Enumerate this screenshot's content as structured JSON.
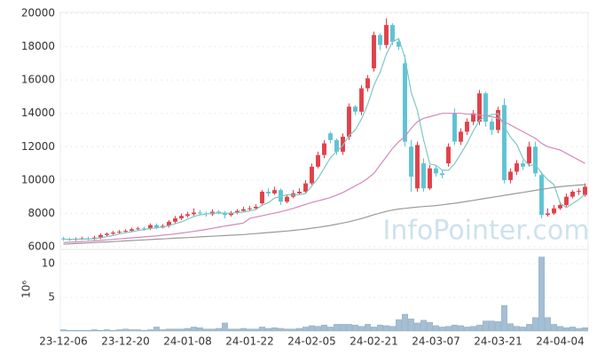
{
  "chart_data": [
    {
      "type": "candlestick",
      "categories": [
        "23-12-06",
        null,
        null,
        null,
        null,
        null,
        null,
        null,
        null,
        null,
        "23-12-20",
        null,
        null,
        null,
        null,
        null,
        null,
        null,
        null,
        null,
        "24-01-08",
        null,
        null,
        null,
        null,
        null,
        null,
        null,
        null,
        null,
        "24-01-22",
        null,
        null,
        null,
        null,
        null,
        null,
        null,
        null,
        null,
        "24-02-05",
        null,
        null,
        null,
        null,
        null,
        null,
        null,
        null,
        null,
        "24-02-21",
        null,
        null,
        null,
        null,
        null,
        null,
        null,
        null,
        null,
        "24-03-07",
        null,
        null,
        null,
        null,
        null,
        null,
        null,
        null,
        null,
        "24-03-21",
        null,
        null,
        null,
        null,
        null,
        null,
        null,
        null,
        null,
        "24-04-04",
        null,
        null,
        null,
        null
      ],
      "open": [
        6500,
        6450,
        6420,
        6480,
        6500,
        6460,
        6550,
        6700,
        6780,
        6850,
        6900,
        6950,
        7050,
        7100,
        7080,
        7300,
        7150,
        7250,
        7500,
        7700,
        7850,
        7950,
        8050,
        8000,
        7950,
        8100,
        8050,
        7900,
        8050,
        8150,
        8250,
        8300,
        8600,
        9300,
        9200,
        9400,
        8700,
        9000,
        9200,
        9300,
        9800,
        10800,
        11500,
        12800,
        12400,
        11700,
        12600,
        14400,
        14100,
        15500,
        16700,
        18700,
        18100,
        19300,
        18300,
        17000,
        12000,
        9500,
        11000,
        9500,
        10700,
        10400,
        11000,
        14000,
        12300,
        12900,
        13500,
        13500,
        15200,
        13500,
        13000,
        14500,
        10000,
        10500,
        11000,
        11000,
        12000,
        10300,
        7900,
        8000,
        8300,
        8500,
        9000,
        9300,
        9100
      ],
      "high": [
        6600,
        6550,
        6550,
        6600,
        6600,
        6650,
        6800,
        6850,
        6950,
        7000,
        7050,
        7150,
        7200,
        7200,
        7400,
        7400,
        7350,
        7600,
        7850,
        8000,
        8100,
        8300,
        8200,
        8100,
        8250,
        8200,
        8150,
        8150,
        8250,
        8400,
        8450,
        8550,
        9400,
        9500,
        9600,
        9500,
        9150,
        9400,
        9500,
        10000,
        11000,
        11700,
        12400,
        12900,
        12500,
        12800,
        14600,
        14500,
        15700,
        16300,
        18900,
        18800,
        19700,
        19400,
        18500,
        17500,
        12400,
        12300,
        11300,
        10900,
        10900,
        10600,
        12200,
        14300,
        13100,
        13700,
        14200,
        15400,
        15300,
        13700,
        14400,
        14900,
        10700,
        11200,
        11200,
        12300,
        12300,
        10500,
        8300,
        8500,
        8700,
        9200,
        9400,
        9500,
        9800
      ],
      "low": [
        6350,
        6350,
        6350,
        6400,
        6380,
        6400,
        6450,
        6600,
        6700,
        6780,
        6850,
        6900,
        6980,
        6950,
        7000,
        7050,
        7100,
        7150,
        7400,
        7600,
        7750,
        7850,
        7900,
        7800,
        7850,
        7950,
        7700,
        7800,
        7950,
        8050,
        8150,
        8200,
        8500,
        9000,
        9100,
        8500,
        8600,
        8900,
        9100,
        9200,
        9700,
        10700,
        11300,
        12200,
        11500,
        11500,
        12400,
        13900,
        13900,
        15300,
        16500,
        17800,
        17900,
        18100,
        17800,
        12000,
        9300,
        9300,
        9300,
        9400,
        10200,
        10100,
        10800,
        12100,
        12100,
        12700,
        13300,
        13300,
        13200,
        12700,
        12800,
        9800,
        9800,
        10300,
        10600,
        10800,
        10200,
        7700,
        7800,
        7900,
        8200,
        8400,
        8900,
        9100,
        9000
      ],
      "close": [
        6450,
        6420,
        6480,
        6500,
        6460,
        6550,
        6700,
        6780,
        6850,
        6900,
        6950,
        7050,
        7100,
        7080,
        7300,
        7150,
        7250,
        7500,
        7700,
        7850,
        7950,
        8050,
        8000,
        7950,
        8100,
        8050,
        7900,
        8050,
        8150,
        8250,
        8300,
        8400,
        9300,
        9200,
        9400,
        8700,
        9000,
        9200,
        9300,
        9800,
        10800,
        11500,
        12200,
        12400,
        11700,
        12600,
        14400,
        14100,
        15500,
        16100,
        18700,
        18100,
        19300,
        18300,
        18000,
        12300,
        10200,
        12100,
        9500,
        10700,
        10400,
        10300,
        12000,
        12300,
        12900,
        13500,
        14000,
        15200,
        13500,
        13000,
        14200,
        10000,
        10500,
        11000,
        10800,
        12000,
        10400,
        7900,
        8000,
        8300,
        8500,
        9000,
        9300,
        9350,
        9600
      ],
      "up_color": "#e2404a",
      "down_color": "#5ec3d3",
      "lines": [
        {
          "color": "#7cc8c4",
          "values": [
            6450,
            6440,
            6450,
            6460,
            6460,
            6480,
            6540,
            6600,
            6670,
            6760,
            6840,
            6900,
            6970,
            7020,
            7100,
            7140,
            7180,
            7260,
            7380,
            7490,
            7650,
            7810,
            7910,
            7960,
            8010,
            8030,
            8000,
            8010,
            8050,
            8080,
            8150,
            8230,
            8490,
            8640,
            8920,
            9000,
            9120,
            9100,
            9120,
            9200,
            9640,
            10100,
            10720,
            11340,
            11720,
            12080,
            12660,
            13000,
            13660,
            14540,
            15680,
            16460,
            17540,
            18300,
            18480,
            17340,
            15260,
            14180,
            12420,
            10960,
            10880,
            10600,
            10580,
            10980,
            11580,
            12200,
            12940,
            13580,
            13820,
            13920,
            13980,
            13180,
            12580,
            12140,
            11300,
            10860,
            10940,
            10420,
            10020,
            9720,
            8620,
            8340,
            8600,
            8830,
            9150
          ]
        },
        {
          "color": "#d488bd",
          "values": [
            6250,
            6270,
            6290,
            6310,
            6330,
            6350,
            6380,
            6410,
            6440,
            6470,
            6500,
            6530,
            6560,
            6590,
            6620,
            6650,
            6690,
            6730,
            6770,
            6820,
            6870,
            6920,
            6980,
            7040,
            7100,
            7170,
            7240,
            7300,
            7360,
            7420,
            7700,
            7780,
            7860,
            7940,
            8020,
            8100,
            8200,
            8300,
            8420,
            8540,
            8650,
            8750,
            8850,
            8950,
            9100,
            9250,
            9450,
            9650,
            9850,
            10100,
            10400,
            10900,
            11400,
            11900,
            12300,
            12600,
            13100,
            13500,
            13700,
            13800,
            13900,
            14000,
            14000,
            14000,
            14000,
            13950,
            13950,
            13900,
            13850,
            13800,
            13700,
            13500,
            13300,
            13100,
            12900,
            12700,
            12500,
            12200,
            12000,
            11900,
            11800,
            11600,
            11400,
            11200,
            11000
          ]
        },
        {
          "color": "#9a9a9a",
          "values": [
            6150,
            6170,
            6190,
            6210,
            6230,
            6250,
            6270,
            6290,
            6310,
            6330,
            6350,
            6370,
            6390,
            6410,
            6430,
            6450,
            6470,
            6490,
            6510,
            6530,
            6550,
            6570,
            6590,
            6610,
            6630,
            6650,
            6670,
            6690,
            6710,
            6730,
            6760,
            6790,
            6820,
            6850,
            6880,
            6910,
            6940,
            6980,
            7020,
            7060,
            7110,
            7160,
            7220,
            7280,
            7350,
            7420,
            7500,
            7590,
            7690,
            7800,
            7920,
            8020,
            8120,
            8200,
            8260,
            8300,
            8340,
            8380,
            8410,
            8440,
            8470,
            8510,
            8560,
            8610,
            8660,
            8720,
            8780,
            8840,
            8900,
            8960,
            9020,
            9080,
            9140,
            9200,
            9260,
            9320,
            9380,
            9440,
            9500,
            9560,
            9600,
            9640,
            9670,
            9700,
            9720
          ]
        }
      ],
      "ylim": [
        6000,
        20000
      ],
      "yticks": [
        6000,
        8000,
        10000,
        12000,
        14000,
        16000,
        18000,
        20000
      ],
      "grid": true,
      "watermark": "InfoPointer.com"
    },
    {
      "type": "bar",
      "ylabel": "10⁶",
      "color": "#a4bfd4",
      "values": [
        0.2,
        0.1,
        0.1,
        0.1,
        0.1,
        0.2,
        0.1,
        0.2,
        0.1,
        0.2,
        0.3,
        0.2,
        0.2,
        0.1,
        0.2,
        0.6,
        0.2,
        0.3,
        0.3,
        0.3,
        0.4,
        0.6,
        0.5,
        0.3,
        0.3,
        0.4,
        1.2,
        0.3,
        0.3,
        0.4,
        0.3,
        0.3,
        0.6,
        0.4,
        0.5,
        0.4,
        0.3,
        0.3,
        0.4,
        0.6,
        0.8,
        0.7,
        0.9,
        0.6,
        1.0,
        1.0,
        1.0,
        0.9,
        0.7,
        1.0,
        0.6,
        0.9,
        0.8,
        0.7,
        1.7,
        2.5,
        1.8,
        1.2,
        1.6,
        1.3,
        0.8,
        0.6,
        0.7,
        0.9,
        0.8,
        0.6,
        0.7,
        0.9,
        1.5,
        1.5,
        1.4,
        3.8,
        1.1,
        0.7,
        0.6,
        1.0,
        2.0,
        11.0,
        2.0,
        1.0,
        0.7,
        0.5,
        0.6,
        0.4,
        0.5
      ],
      "ylim": [
        0,
        12
      ],
      "yticks": [
        5,
        10
      ],
      "grid": true
    }
  ]
}
